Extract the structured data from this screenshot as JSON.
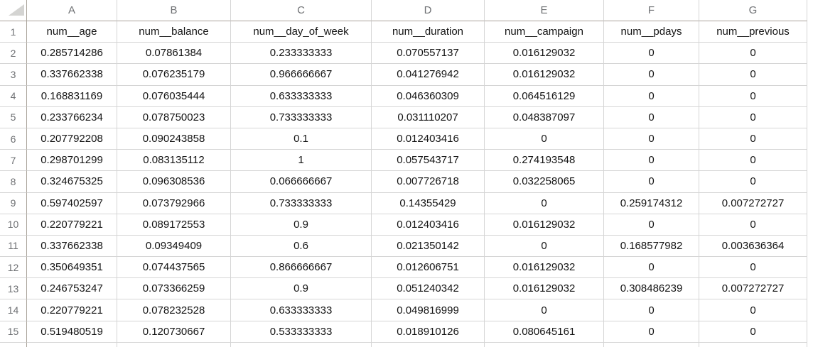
{
  "colors": {
    "background": "#ffffff",
    "gridline": "#d5d5d5",
    "header_border": "#a9a39a",
    "header_text": "#6e7073",
    "cell_text": "#141414",
    "select_all_triangle": "#d4d4d2"
  },
  "spreadsheet": {
    "column_letters": [
      "A",
      "B",
      "C",
      "D",
      "E",
      "F",
      "G"
    ],
    "row_numbers": [
      "1",
      "2",
      "3",
      "4",
      "5",
      "6",
      "7",
      "8",
      "9",
      "10",
      "11",
      "12",
      "13",
      "14",
      "15"
    ],
    "header_row": [
      "num__age",
      "num__balance",
      "num__day_of_week",
      "num__duration",
      "num__campaign",
      "num__pdays",
      "num__previous"
    ],
    "data_rows": [
      [
        "0.285714286",
        "0.07861384",
        "0.233333333",
        "0.070557137",
        "0.016129032",
        "0",
        "0"
      ],
      [
        "0.337662338",
        "0.076235179",
        "0.966666667",
        "0.041276942",
        "0.016129032",
        "0",
        "0"
      ],
      [
        "0.168831169",
        "0.076035444",
        "0.633333333",
        "0.046360309",
        "0.064516129",
        "0",
        "0"
      ],
      [
        "0.233766234",
        "0.078750023",
        "0.733333333",
        "0.031110207",
        "0.048387097",
        "0",
        "0"
      ],
      [
        "0.207792208",
        "0.090243858",
        "0.1",
        "0.012403416",
        "0",
        "0",
        "0"
      ],
      [
        "0.298701299",
        "0.083135112",
        "1",
        "0.057543717",
        "0.274193548",
        "0",
        "0"
      ],
      [
        "0.324675325",
        "0.096308536",
        "0.066666667",
        "0.007726718",
        "0.032258065",
        "0",
        "0"
      ],
      [
        "0.597402597",
        "0.073792966",
        "0.733333333",
        "0.14355429",
        "0",
        "0.259174312",
        "0.007272727"
      ],
      [
        "0.220779221",
        "0.089172553",
        "0.9",
        "0.012403416",
        "0.016129032",
        "0",
        "0"
      ],
      [
        "0.337662338",
        "0.09349409",
        "0.6",
        "0.021350142",
        "0",
        "0.168577982",
        "0.003636364"
      ],
      [
        "0.350649351",
        "0.074437565",
        "0.866666667",
        "0.012606751",
        "0.016129032",
        "0",
        "0"
      ],
      [
        "0.246753247",
        "0.073366259",
        "0.9",
        "0.051240342",
        "0.016129032",
        "0.308486239",
        "0.007272727"
      ],
      [
        "0.220779221",
        "0.078232528",
        "0.633333333",
        "0.049816999",
        "0",
        "0",
        "0"
      ],
      [
        "0.519480519",
        "0.120730667",
        "0.533333333",
        "0.018910126",
        "0.080645161",
        "0",
        "0"
      ]
    ]
  }
}
